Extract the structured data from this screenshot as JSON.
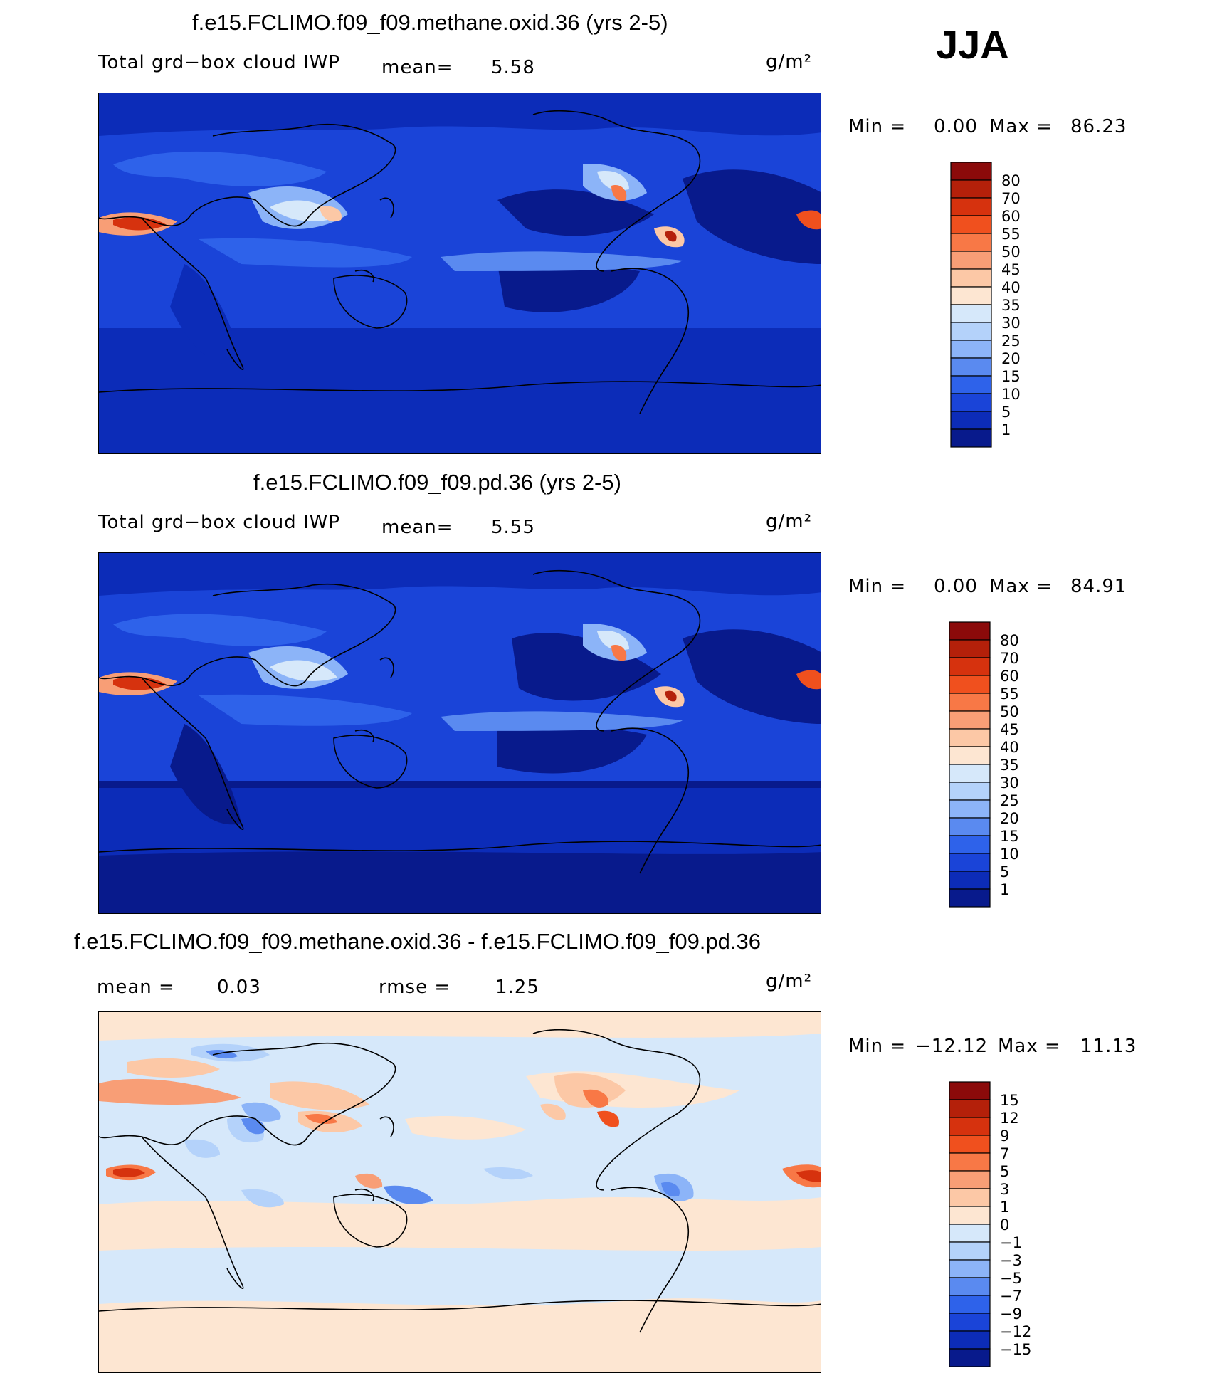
{
  "season": "JJA",
  "panels": [
    {
      "title": "f.e15.FCLIMO.f09_f09.methane.oxid.36 (yrs 2-5)",
      "left_label": "Total grd−box cloud IWP",
      "stat1_label": "mean=",
      "stat1_value": "5.58",
      "units": "g/m²",
      "min_label": "Min =",
      "min_value": "0.00",
      "max_label": "Max =",
      "max_value": "86.23",
      "colorbar": {
        "labels": [
          "80",
          "70",
          "60",
          "55",
          "50",
          "45",
          "40",
          "35",
          "30",
          "25",
          "20",
          "15",
          "10",
          "5",
          "1"
        ],
        "colors": [
          "#8b0a0a",
          "#b4200a",
          "#d6320e",
          "#f0501e",
          "#f87846",
          "#f89e76",
          "#fcc8a6",
          "#fde6d2",
          "#d6e8fa",
          "#b4d2fa",
          "#8cb4f8",
          "#5a8af0",
          "#2e62ea",
          "#1a44d8",
          "#0c2cb8",
          "#081a8c"
        ]
      }
    },
    {
      "title": "f.e15.FCLIMO.f09_f09.pd.36 (yrs 2-5)",
      "left_label": "Total grd−box cloud IWP",
      "stat1_label": "mean=",
      "stat1_value": "5.55",
      "units": "g/m²",
      "min_label": "Min =",
      "min_value": "0.00",
      "max_label": "Max =",
      "max_value": "84.91",
      "colorbar": {
        "labels": [
          "80",
          "70",
          "60",
          "55",
          "50",
          "45",
          "40",
          "35",
          "30",
          "25",
          "20",
          "15",
          "10",
          "5",
          "1"
        ],
        "colors": [
          "#8b0a0a",
          "#b4200a",
          "#d6320e",
          "#f0501e",
          "#f87846",
          "#f89e76",
          "#fcc8a6",
          "#fde6d2",
          "#d6e8fa",
          "#b4d2fa",
          "#8cb4f8",
          "#5a8af0",
          "#2e62ea",
          "#1a44d8",
          "#0c2cb8",
          "#081a8c"
        ]
      }
    },
    {
      "title": "f.e15.FCLIMO.f09_f09.methane.oxid.36 - f.e15.FCLIMO.f09_f09.pd.36",
      "stat1_label": "mean =",
      "stat1_value": "0.03",
      "stat2_label": "rmse =",
      "stat2_value": "1.25",
      "units": "g/m²",
      "min_label": "Min =",
      "min_value": "−12.12",
      "max_label": "Max =",
      "max_value": "11.13",
      "colorbar": {
        "labels": [
          "15",
          "12",
          "9",
          "7",
          "5",
          "3",
          "1",
          "0",
          "−1",
          "−3",
          "−5",
          "−7",
          "−9",
          "−12",
          "−15"
        ],
        "colors": [
          "#8b0a0a",
          "#b4200a",
          "#d6320e",
          "#f0501e",
          "#f87846",
          "#f89e76",
          "#fcc8a6",
          "#fde6d2",
          "#d6e8fa",
          "#b4d2fa",
          "#8cb4f8",
          "#5a8af0",
          "#2e62ea",
          "#1a44d8",
          "#0c2cb8",
          "#081a8c"
        ]
      }
    }
  ],
  "chart_data": [
    {
      "type": "heatmap",
      "title": "f.e15.FCLIMO.f09_f09.methane.oxid.36 (yrs 2-5)",
      "variable": "Total grd−box cloud IWP",
      "units": "g/m²",
      "season": "JJA",
      "mean": 5.58,
      "min": 0.0,
      "max": 86.23,
      "levels": [
        1,
        5,
        10,
        15,
        20,
        25,
        30,
        35,
        40,
        45,
        50,
        55,
        60,
        70,
        80
      ],
      "map_projection": "cylindrical equidistant, centered on Pacific"
    },
    {
      "type": "heatmap",
      "title": "f.e15.FCLIMO.f09_f09.pd.36 (yrs 2-5)",
      "variable": "Total grd−box cloud IWP",
      "units": "g/m²",
      "season": "JJA",
      "mean": 5.55,
      "min": 0.0,
      "max": 84.91,
      "levels": [
        1,
        5,
        10,
        15,
        20,
        25,
        30,
        35,
        40,
        45,
        50,
        55,
        60,
        70,
        80
      ],
      "map_projection": "cylindrical equidistant, centered on Pacific"
    },
    {
      "type": "heatmap",
      "title": "f.e15.FCLIMO.f09_f09.methane.oxid.36 - f.e15.FCLIMO.f09_f09.pd.36",
      "units": "g/m²",
      "season": "JJA",
      "mean": 0.03,
      "rmse": 1.25,
      "min": -12.12,
      "max": 11.13,
      "levels": [
        -15,
        -12,
        -9,
        -7,
        -5,
        -3,
        -1,
        0,
        1,
        3,
        5,
        7,
        9,
        12,
        15
      ],
      "map_projection": "cylindrical equidistant, centered on Pacific"
    }
  ]
}
